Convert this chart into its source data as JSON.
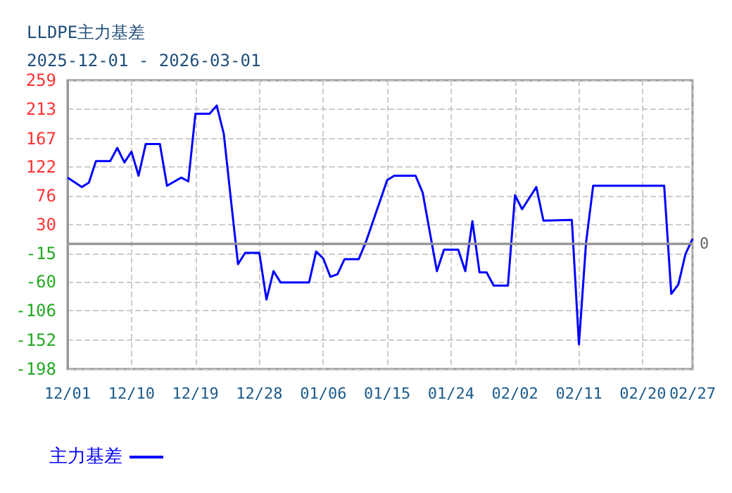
{
  "chart_data": {
    "type": "line",
    "title": "LLDPE主力基差",
    "subtitle": "2025-12-01 - 2026-03-01",
    "x": [
      "2025-12-01",
      "2025-12-03",
      "2025-12-04",
      "2025-12-05",
      "2025-12-07",
      "2025-12-08",
      "2025-12-09",
      "2025-12-10",
      "2025-12-11",
      "2025-12-12",
      "2025-12-14",
      "2025-12-15",
      "2025-12-17",
      "2025-12-18",
      "2025-12-19",
      "2025-12-21",
      "2025-12-22",
      "2025-12-23",
      "2025-12-24",
      "2025-12-25",
      "2025-12-26",
      "2025-12-28",
      "2025-12-29",
      "2025-12-30",
      "2025-12-31",
      "2026-01-04",
      "2026-01-05",
      "2026-01-06",
      "2026-01-07",
      "2026-01-08",
      "2026-01-09",
      "2026-01-11",
      "2026-01-12",
      "2026-01-15",
      "2026-01-16",
      "2026-01-19",
      "2026-01-20",
      "2026-01-22",
      "2026-01-23",
      "2026-01-25",
      "2026-01-26",
      "2026-01-27",
      "2026-01-28",
      "2026-01-29",
      "2026-01-30",
      "2026-02-01",
      "2026-02-02",
      "2026-02-03",
      "2026-02-05",
      "2026-02-06",
      "2026-02-10",
      "2026-02-11",
      "2026-02-12",
      "2026-02-13",
      "2026-02-23",
      "2026-02-24",
      "2026-02-25",
      "2026-02-26",
      "2026-02-27"
    ],
    "series": [
      {
        "name": "主力基差",
        "color": "#0000ff",
        "values": [
          105,
          90,
          97,
          131,
          131,
          152,
          129,
          146,
          108,
          158,
          158,
          92,
          105,
          99,
          206,
          206,
          219,
          174,
          70,
          -32,
          -14,
          -14,
          -88,
          -43,
          -61,
          -61,
          -12,
          -23,
          -52,
          -48,
          -24,
          -24,
          3,
          101,
          108,
          108,
          81,
          -43,
          -9,
          -9,
          -43,
          36,
          -45,
          -45,
          -66,
          -66,
          77,
          55,
          90,
          37,
          38,
          -159,
          2,
          92,
          92,
          -79,
          -64,
          -16,
          8
        ]
      }
    ],
    "xlim": [
      "2025-12-01",
      "2026-02-27"
    ],
    "xticks": [
      {
        "value": "2025-12-01",
        "label": "12/01"
      },
      {
        "value": "2025-12-10",
        "label": "12/10"
      },
      {
        "value": "2025-12-19",
        "label": "12/19"
      },
      {
        "value": "2025-12-28",
        "label": "12/28"
      },
      {
        "value": "2026-01-06",
        "label": "01/06"
      },
      {
        "value": "2026-01-15",
        "label": "01/15"
      },
      {
        "value": "2026-01-24",
        "label": "01/24"
      },
      {
        "value": "2026-02-02",
        "label": "02/02"
      },
      {
        "value": "2026-02-11",
        "label": "02/11"
      },
      {
        "value": "2026-02-20",
        "label": "02/20"
      },
      {
        "value": "2026-02-27",
        "label": "02/27"
      }
    ],
    "ylim": [
      -198,
      259
    ],
    "yticks": [
      -198,
      -152,
      -106,
      -60,
      -15,
      30,
      76,
      122,
      167,
      213,
      259
    ],
    "ref_lines": [
      {
        "axis": "y",
        "value": 0,
        "label": "0",
        "color": "#999999"
      }
    ],
    "grid": true,
    "legend": "bottom left",
    "marker": "none",
    "line_style": "solid"
  }
}
